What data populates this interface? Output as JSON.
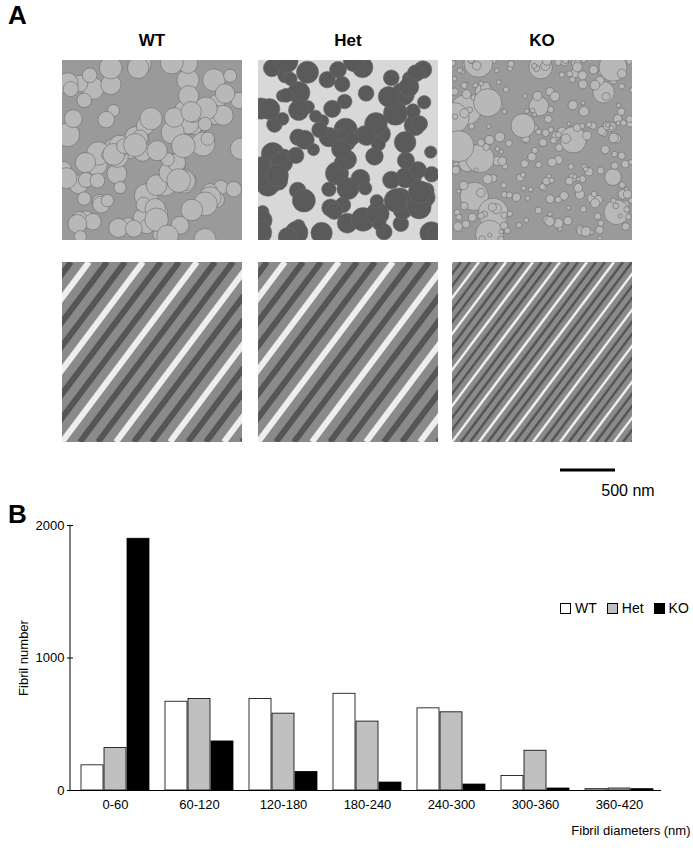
{
  "figure": {
    "panel_a": {
      "label": "A",
      "columns": [
        "WT",
        "Het",
        "KO"
      ],
      "scale_bar": "500 nm"
    },
    "panel_b_label": "B"
  },
  "chart_data": {
    "type": "bar",
    "x_label": "Fibril diameters (nm)",
    "y_label": "Fibril number",
    "categories": [
      "0-60",
      "60-120",
      "120-180",
      "180-240",
      "240-300",
      "300-360",
      "360-420"
    ],
    "series": [
      {
        "name": "WT",
        "color": "#ffffff",
        "values": [
          190,
          670,
          690,
          730,
          620,
          110,
          10
        ]
      },
      {
        "name": "Het",
        "color": "#c0c0c0",
        "values": [
          320,
          690,
          580,
          520,
          590,
          300,
          15
        ]
      },
      {
        "name": "KO",
        "color": "#000000",
        "values": [
          1900,
          370,
          140,
          60,
          45,
          15,
          10
        ]
      }
    ],
    "ylim": [
      0,
      2000
    ],
    "yticks": [
      0,
      1000,
      2000
    ],
    "grid": false,
    "legend": "top-right"
  }
}
